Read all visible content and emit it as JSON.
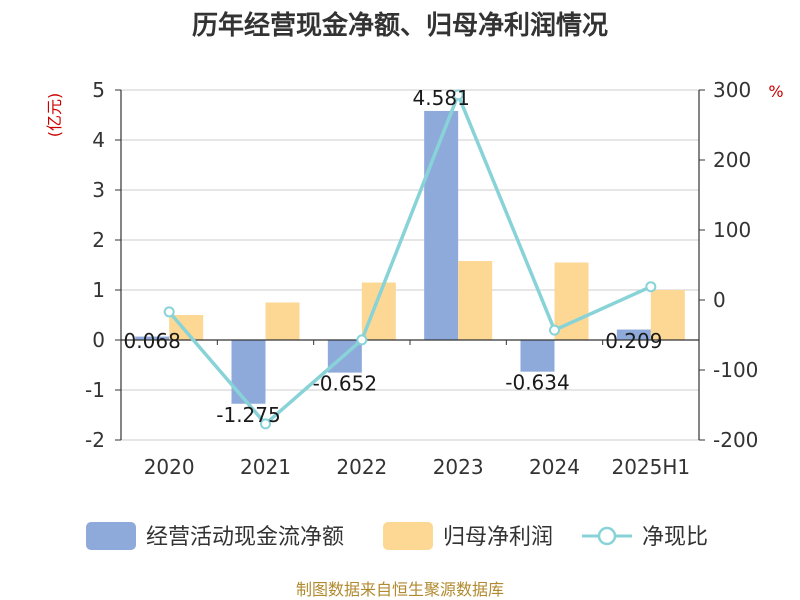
{
  "title": "历年经营现金净额、归母净利润情况",
  "y_left_unit": "(亿元)",
  "y_right_unit": "%",
  "source": "制图数据来自恒生聚源数据库",
  "legend": [
    {
      "label": "经营活动现金流净额",
      "color": "#8eaadb",
      "kind": "bar"
    },
    {
      "label": "归母净利润",
      "color": "#fdd794",
      "kind": "bar"
    },
    {
      "label": "净现比",
      "color": "#88d3d8",
      "kind": "line"
    }
  ],
  "chart_data": {
    "type": "bar",
    "title": "历年经营现金净额、归母净利润情况",
    "categories": [
      "2020",
      "2021",
      "2022",
      "2023",
      "2024",
      "2025H1"
    ],
    "ylim": [
      -2,
      5
    ],
    "y2lim": [
      -200,
      300
    ],
    "yticks": [
      -2,
      -1,
      0,
      1,
      2,
      3,
      4,
      5
    ],
    "y2ticks": [
      -200,
      -100,
      0,
      100,
      200,
      300
    ],
    "grid": true,
    "legend_position": "bottom",
    "series": [
      {
        "name": "经营活动现金流净额",
        "axis": "left",
        "type": "bar",
        "color": "#8eaadb",
        "values": [
          0.068,
          -1.275,
          -0.652,
          4.581,
          -0.634,
          0.209
        ],
        "labels": [
          "0.068",
          "-1.275",
          "-0.652",
          "4.581",
          "-0.634",
          "0.209"
        ]
      },
      {
        "name": "归母净利润",
        "axis": "left",
        "type": "bar",
        "color": "#fdd794",
        "values": [
          0.5,
          0.75,
          1.15,
          1.58,
          1.55,
          1.0
        ]
      },
      {
        "name": "净现比",
        "axis": "right",
        "type": "line",
        "color": "#88d3d8",
        "values": [
          -17,
          -177,
          -57,
          293,
          -43,
          19
        ]
      }
    ]
  }
}
